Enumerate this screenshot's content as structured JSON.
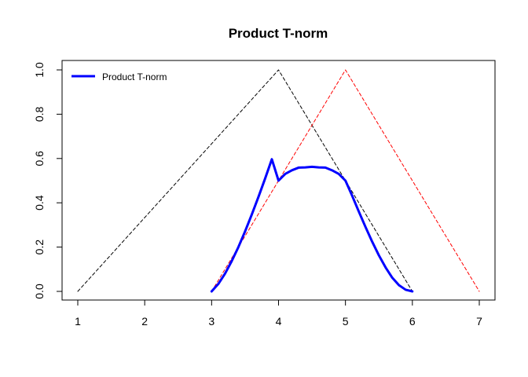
{
  "chart_data": {
    "type": "line",
    "title": "Product T-norm",
    "xlabel": "",
    "ylabel": "",
    "xlim": [
      1,
      7
    ],
    "ylim": [
      0,
      1
    ],
    "x_ticks": [
      1,
      2,
      3,
      4,
      5,
      6,
      7
    ],
    "y_ticks": [
      0.0,
      0.2,
      0.4,
      0.6,
      0.8,
      1.0
    ],
    "x_tick_labels": [
      "1",
      "2",
      "3",
      "4",
      "5",
      "6",
      "7"
    ],
    "y_tick_labels": [
      "0.0",
      "0.2",
      "0.4",
      "0.6",
      "0.8",
      "1.0"
    ],
    "grid": false,
    "legend_position": "top-left",
    "series": [
      {
        "color": "#000000",
        "style": "dashed",
        "x": [
          1,
          4,
          6
        ],
        "y": [
          0,
          1,
          0
        ]
      },
      {
        "color": "#ff0000",
        "style": "dashed",
        "x": [
          3,
          5,
          7
        ],
        "y": [
          0,
          1,
          0
        ]
      },
      {
        "name": "Product T-norm",
        "color": "#0000ff",
        "style": "solid",
        "x": [
          3,
          3.1,
          3.2,
          3.3,
          3.4,
          3.5,
          3.6,
          3.7,
          3.8,
          3.9,
          4,
          4.1,
          4.2,
          4.3,
          4.4,
          4.5,
          4.6,
          4.7,
          4.8,
          4.9,
          5,
          5.1,
          5.2,
          5.3,
          5.4,
          5.5,
          5.6,
          5.7,
          5.8,
          5.9,
          6
        ],
        "y": [
          0,
          0.0335,
          0.08,
          0.1365,
          0.2,
          0.271,
          0.3467,
          0.4267,
          0.51,
          0.5967,
          0.5,
          0.5305,
          0.5467,
          0.5588,
          0.56,
          0.5625,
          0.56,
          0.5588,
          0.5467,
          0.5305,
          0.5,
          0.432,
          0.36,
          0.2905,
          0.224,
          0.1625,
          0.108,
          0.0615,
          0.028,
          0.0073,
          0
        ]
      }
    ],
    "legend": [
      {
        "label": "Product T-norm",
        "color": "#0000ff"
      }
    ]
  }
}
